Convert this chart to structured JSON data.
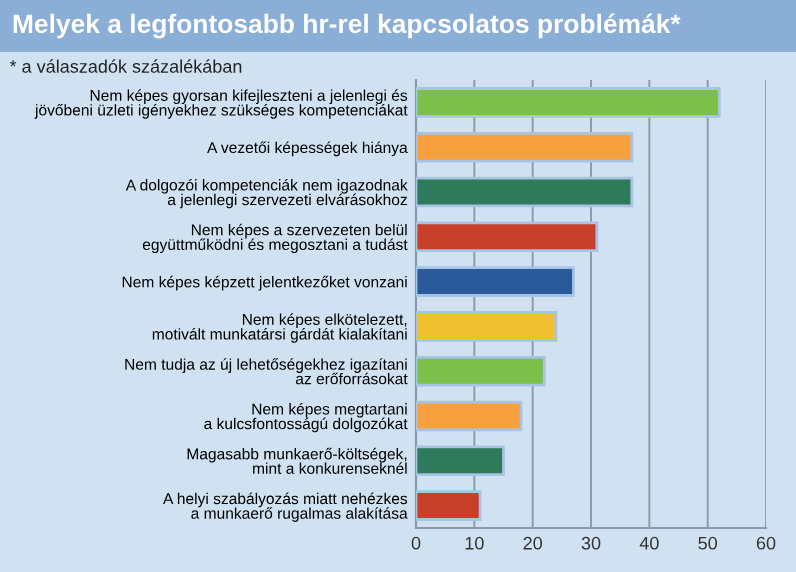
{
  "chart_data": {
    "type": "bar",
    "orientation": "horizontal",
    "title": "Melyek a legfontosabb hr-rel kapcsolatos problémák*",
    "subtitle": "* a válaszadók százalékában",
    "categories": [
      "Nem képes gyorsan kifejleszteni a jelenlegi és\njövőbeni üzleti igényekhez szükséges kompetenciákat",
      "A vezetői képességek hiánya",
      "A dolgozói kompetenciák nem igazodnak\na jelenlegi szervezeti elvárásokhoz",
      "Nem képes a szervezeten belül\negyüttműködni és megosztani a tudást",
      "Nem képes képzett jelentkezőket vonzani",
      "Nem képes elkötelezett,\nmotivált munkatársi gárdát kialakítani",
      "Nem tudja az új lehetőségekhez igazítani\naz erőforrásokat",
      "Nem képes megtartani\na kulcsfontosságú dolgozókat",
      "Magasabb munkaerő-költségek,\nmint a konkurenseknél",
      "A helyi szabályozás miatt nehézkes\na munkaerő rugalmas alakítása"
    ],
    "values": [
      52,
      37,
      37,
      31,
      27,
      24,
      22,
      18,
      15,
      11
    ],
    "colors": [
      "#7cc04a",
      "#f7a040",
      "#2e7a5a",
      "#c8402a",
      "#2a5a9a",
      "#f0c030",
      "#7cc04a",
      "#f7a040",
      "#2e7a5a",
      "#c8402a"
    ],
    "xlim": [
      0,
      60
    ],
    "xticks": [
      0,
      10,
      20,
      30,
      40,
      50,
      60
    ],
    "grid": "x"
  }
}
